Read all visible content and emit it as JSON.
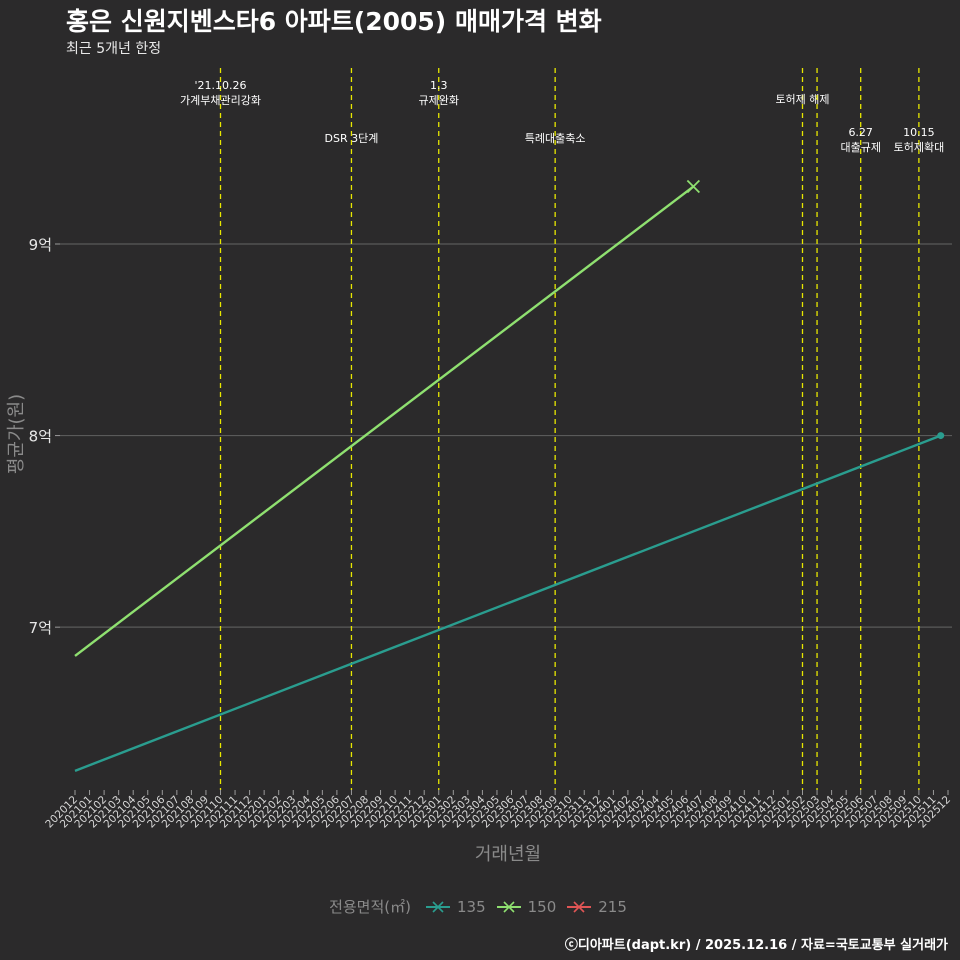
{
  "title": "홍은 신원지벤스타6 아파트(2005) 매매가격 변화",
  "subtitle": "최근 5개년 한정",
  "caption": "ⓒ디아파트(dapt.kr) / 2025.12.16 / 자료=국토교통부 실거래가",
  "colors": {
    "background": "#2b2a2b",
    "grid": "#5a5a5a",
    "event_line": "#e8e800"
  },
  "chart_data": {
    "type": "line",
    "title": "홍은 신원지벤스타6 아파트(2005) 매매가격 변화",
    "subtitle": "최근 5개년 한정",
    "xlabel": "거래년월",
    "ylabel": "평균가(원)",
    "ylim": [
      6.15,
      9.95
    ],
    "yticks": [
      {
        "value": 7,
        "label": "7억"
      },
      {
        "value": 8,
        "label": "8억"
      },
      {
        "value": 9,
        "label": "9억"
      }
    ],
    "x_ticks": [
      "202012",
      "202101",
      "202102",
      "202103",
      "202104",
      "202105",
      "202106",
      "202107",
      "202108",
      "202109",
      "202110",
      "202111",
      "202112",
      "202201",
      "202202",
      "202203",
      "202204",
      "202205",
      "202206",
      "202207",
      "202208",
      "202209",
      "202210",
      "202211",
      "202212",
      "202301",
      "202302",
      "202303",
      "202304",
      "202305",
      "202306",
      "202307",
      "202308",
      "202309",
      "202310",
      "202311",
      "202312",
      "202401",
      "202402",
      "202403",
      "202404",
      "202405",
      "202406",
      "202407",
      "202408",
      "202409",
      "202410",
      "202411",
      "202412",
      "202501",
      "202502",
      "202503",
      "202504",
      "202505",
      "202506",
      "202507",
      "202508",
      "202509",
      "202510",
      "202511",
      "202512"
    ],
    "legend_title": "전용면적(㎡)",
    "series": [
      {
        "name": "135",
        "color": "#2a9d8f",
        "marker": "circle",
        "points": [
          {
            "x": 0,
            "y": 6.25
          },
          {
            "x": 59.5,
            "y": 8.0
          }
        ]
      },
      {
        "name": "150",
        "color": "#8fe070",
        "marker": "x",
        "points": [
          {
            "x": 0,
            "y": 6.85
          },
          {
            "x": 42.5,
            "y": 9.3
          }
        ]
      },
      {
        "name": "215",
        "color": "#e05555",
        "marker": "x",
        "points": []
      }
    ],
    "events": [
      {
        "x": 10.0,
        "lines": [
          "'21.10.26",
          "가계부채관리강화"
        ],
        "level": 1
      },
      {
        "x": 19.0,
        "lines": [
          "DSR 3단계"
        ],
        "level": 3
      },
      {
        "x": 25.0,
        "lines": [
          "1.3",
          "규제완화"
        ],
        "level": 1
      },
      {
        "x": 33.0,
        "lines": [
          "특례대출축소"
        ],
        "level": 3
      },
      {
        "x": 50.0,
        "lines": [
          "토허제 해제"
        ],
        "level": 2
      },
      {
        "x": 51.0,
        "lines": [],
        "level": 2
      },
      {
        "x": 54.0,
        "lines": [
          "6.27",
          "대출규제"
        ],
        "level": 3
      },
      {
        "x": 58.0,
        "lines": [
          "10.15",
          "토허제확대"
        ],
        "level": 3
      }
    ]
  }
}
